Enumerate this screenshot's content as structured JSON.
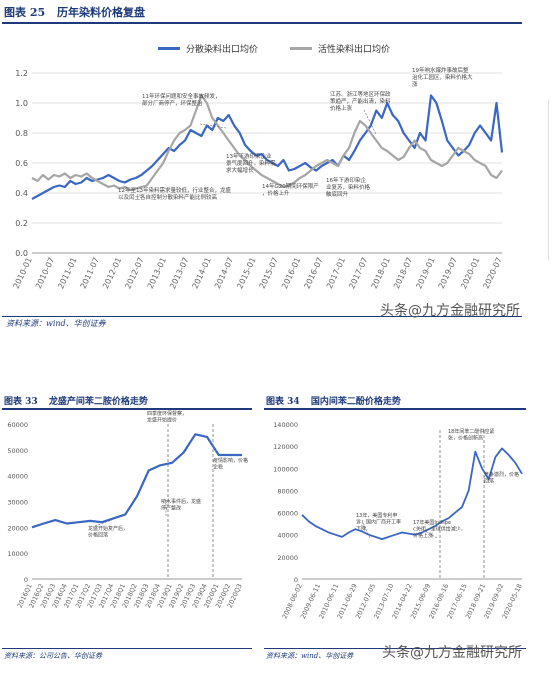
{
  "panel1": {
    "fig_label": "图表 25",
    "title": "历年染料价格复盘",
    "source": "资料来源：wind、华创证券",
    "watermark": "头条@九方金融研究所",
    "colors": {
      "disperse": "#3a66c4",
      "reactive": "#a6a6a6"
    }
  },
  "panel2": {
    "fig_label": "图表 33",
    "title": "龙盛产间苯二胺价格走势",
    "source": "资料来源：公司公告、华创证券"
  },
  "panel3": {
    "fig_label": "图表 34",
    "title": "国内间苯二酚价格走势",
    "source": "资料来源：wind、华创证券",
    "watermark": "头条@九方金融研究所"
  },
  "chart_data": [
    {
      "type": "line",
      "title": "历年染料价格复盘",
      "ylim": [
        0,
        1.2
      ],
      "yticks": [
        "0.0",
        "0.2",
        "0.4",
        "0.6",
        "0.8",
        "1.0",
        "1.2"
      ],
      "xticks": [
        "2010-01",
        "2010-07",
        "2011-01",
        "2011-07",
        "2012-01",
        "2012-07",
        "2013-01",
        "2013-07",
        "2014-01",
        "2014-07",
        "2015-01",
        "2015-07",
        "2016-01",
        "2016-07",
        "2017-01",
        "2017-07",
        "2018-01",
        "2018-07",
        "2019-01",
        "2019-07",
        "2020-01",
        "2020-07"
      ],
      "grid": true,
      "legend_position": "top",
      "series": [
        {
          "name": "分散染料出口均价",
          "color": "#3a66c4",
          "values": [
            0.36,
            0.38,
            0.4,
            0.42,
            0.44,
            0.45,
            0.44,
            0.48,
            0.46,
            0.47,
            0.5,
            0.48,
            0.49,
            0.5,
            0.52,
            0.5,
            0.48,
            0.47,
            0.49,
            0.5,
            0.52,
            0.55,
            0.58,
            0.62,
            0.66,
            0.7,
            0.68,
            0.72,
            0.75,
            0.82,
            0.8,
            0.78,
            0.85,
            0.82,
            0.9,
            0.88,
            0.92,
            0.85,
            0.8,
            0.72,
            0.68,
            0.65,
            0.66,
            0.62,
            0.6,
            0.58,
            0.62,
            0.55,
            0.56,
            0.58,
            0.6,
            0.57,
            0.55,
            0.58,
            0.6,
            0.62,
            0.58,
            0.65,
            0.62,
            0.68,
            0.75,
            0.8,
            0.85,
            0.95,
            0.9,
            1.0,
            0.92,
            0.88,
            0.8,
            0.75,
            0.7,
            0.8,
            0.75,
            1.05,
            1.0,
            0.88,
            0.75,
            0.7,
            0.65,
            0.68,
            0.72,
            0.8,
            0.85,
            0.8,
            0.75,
            1.0,
            0.67
          ]
        },
        {
          "name": "活性染料出口均价",
          "color": "#a6a6a6",
          "values": [
            0.5,
            0.48,
            0.52,
            0.49,
            0.52,
            0.51,
            0.53,
            0.5,
            0.52,
            0.51,
            0.53,
            0.5,
            0.48,
            0.46,
            0.44,
            0.45,
            0.43,
            0.44,
            0.42,
            0.43,
            0.44,
            0.45,
            0.5,
            0.55,
            0.6,
            0.68,
            0.75,
            0.8,
            0.82,
            0.85,
            0.95,
            1.05,
            1.0,
            0.9,
            0.85,
            0.8,
            0.75,
            0.7,
            0.65,
            0.62,
            0.58,
            0.55,
            0.52,
            0.5,
            0.48,
            0.46,
            0.44,
            0.45,
            0.47,
            0.5,
            0.52,
            0.55,
            0.58,
            0.6,
            0.62,
            0.6,
            0.58,
            0.65,
            0.7,
            0.8,
            0.88,
            0.85,
            0.8,
            0.75,
            0.7,
            0.68,
            0.65,
            0.62,
            0.64,
            0.7,
            0.75,
            0.7,
            0.68,
            0.62,
            0.6,
            0.58,
            0.6,
            0.65,
            0.7,
            0.68,
            0.66,
            0.62,
            0.6,
            0.58,
            0.52,
            0.5,
            0.55
          ]
        }
      ],
      "annotations": [
        "11年环保问题和安全事故频发，部分厂商停产，环保整治",
        "13年下游印染企业景气度回升，染料需求大幅增长",
        "12年至13年染料需求量较低，行业整合，龙盛以及闰土各自控制分散染料产能比例较高",
        "14年G20期间环保限产，价格上升",
        "16年下游印染企业复苏，染料价格触底回升",
        "江苏、浙江等地区环保政策趋严，产能出清，染料价格上涨",
        "19年响水爆炸事故后整治化工园区，染料价格大涨"
      ]
    },
    {
      "type": "line",
      "title": "龙盛产间苯二胺价格走势",
      "ylim": [
        0,
        60000
      ],
      "yticks": [
        "0",
        "10000",
        "20000",
        "30000",
        "40000",
        "50000",
        "60000"
      ],
      "xticks": [
        "2016Q1",
        "2016Q2",
        "2016Q3",
        "2016Q4",
        "2017Q1",
        "2017Q2",
        "2017Q3",
        "2017Q4",
        "2018Q1",
        "2018Q2",
        "2018Q3",
        "2018Q4",
        "2019Q1",
        "2019Q2",
        "2019Q3",
        "2019Q4",
        "2020Q1",
        "2020Q2",
        "2020Q3"
      ],
      "series": [
        {
          "name": "间苯二胺价格",
          "color": "#3a66c4",
          "values": [
            20000,
            21500,
            22800,
            21500,
            22000,
            22500,
            22000,
            23500,
            25000,
            32000,
            42000,
            44000,
            45000,
            49000,
            56000,
            55000,
            48000,
            48000,
            48000
          ]
        }
      ],
      "annotations": [
        "四季度环保督察，龙盛开始提价",
        "响水事件后，龙盛停产整改",
        "龙盛开始复产后，价格回落",
        "疫情影响，价格企稳"
      ]
    },
    {
      "type": "line",
      "title": "国内间苯二酚价格走势",
      "ylim": [
        0,
        140000
      ],
      "yticks": [
        "0",
        "20000",
        "40000",
        "60000",
        "80000",
        "100000",
        "120000",
        "140000"
      ],
      "xticks": [
        "2008-06-02",
        "2009-06-11",
        "2010-06-11",
        "2011-06-29",
        "2012-07-05",
        "2013-07-10",
        "2014-04-22",
        "2015-06-09",
        "2016-08-16",
        "2017-06-15",
        "2018-09-21",
        "2019-09-02",
        "2020-05-18"
      ],
      "series": [
        {
          "name": "间苯二酚价格",
          "color": "#3a66c4",
          "values": [
            58000,
            52000,
            48000,
            45000,
            42000,
            40000,
            38000,
            42000,
            45000,
            43000,
            40000,
            38000,
            36000,
            38000,
            40000,
            42000,
            41000,
            40000,
            42000,
            45000,
            48000,
            52000,
            55000,
            60000,
            65000,
            80000,
            115000,
            100000,
            90000,
            110000,
            118000,
            112000,
            105000,
            95000
          ]
        }
      ],
      "annotations": [
        "13年，美国专利申诉，国内厂商开工率下降",
        "17年美国Indspec关闭，全球供给减少，价格上涨",
        "18年间苯二酚供应紧张，价格创新高",
        "竞争激烈，价格回落"
      ]
    }
  ]
}
